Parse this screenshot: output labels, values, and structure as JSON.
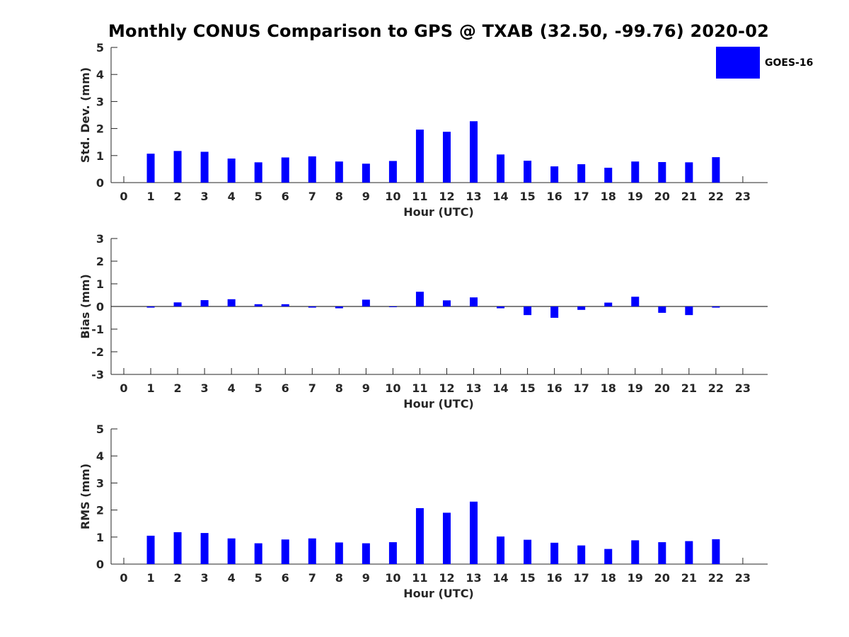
{
  "title": "Monthly CONUS Comparison to GPS @ TXAB (32.50, -99.76) 2020-02",
  "legend": {
    "label": "GOES-16",
    "color": "#0000ff"
  },
  "chart_data": [
    {
      "type": "bar",
      "name": "std-dev",
      "xlabel": "Hour (UTC)",
      "ylabel": "Std. Dev. (mm)",
      "ylim": [
        0,
        5
      ],
      "yticks": [
        0,
        1,
        2,
        3,
        4,
        5
      ],
      "categories": [
        "0",
        "1",
        "2",
        "3",
        "4",
        "5",
        "6",
        "7",
        "8",
        "9",
        "10",
        "11",
        "12",
        "13",
        "14",
        "15",
        "16",
        "17",
        "18",
        "19",
        "20",
        "21",
        "22",
        "23"
      ],
      "series": [
        {
          "name": "GOES-16",
          "values": [
            null,
            1.07,
            1.17,
            1.14,
            0.89,
            0.75,
            0.93,
            0.97,
            0.78,
            0.7,
            0.8,
            1.96,
            1.88,
            2.27,
            1.04,
            0.81,
            0.6,
            0.68,
            0.55,
            0.78,
            0.76,
            0.75,
            0.94,
            null
          ]
        }
      ]
    },
    {
      "type": "bar",
      "name": "bias",
      "xlabel": "Hour (UTC)",
      "ylabel": "Bias (mm)",
      "ylim": [
        -3,
        3
      ],
      "yticks": [
        -3,
        -2,
        -1,
        0,
        1,
        2,
        3
      ],
      "categories": [
        "0",
        "1",
        "2",
        "3",
        "4",
        "5",
        "6",
        "7",
        "8",
        "9",
        "10",
        "11",
        "12",
        "13",
        "14",
        "15",
        "16",
        "17",
        "18",
        "19",
        "20",
        "21",
        "22",
        "23"
      ],
      "series": [
        {
          "name": "GOES-16",
          "values": [
            null,
            -0.05,
            0.18,
            0.28,
            0.32,
            0.1,
            0.1,
            -0.05,
            -0.08,
            0.3,
            0.0,
            0.65,
            0.27,
            0.4,
            -0.08,
            -0.38,
            -0.5,
            -0.15,
            0.17,
            0.43,
            -0.28,
            -0.38,
            -0.05,
            null
          ]
        }
      ]
    },
    {
      "type": "bar",
      "name": "rms",
      "xlabel": "Hour (UTC)",
      "ylabel": "RMS (mm)",
      "ylim": [
        0,
        5
      ],
      "yticks": [
        0,
        1,
        2,
        3,
        4,
        5
      ],
      "categories": [
        "0",
        "1",
        "2",
        "3",
        "4",
        "5",
        "6",
        "7",
        "8",
        "9",
        "10",
        "11",
        "12",
        "13",
        "14",
        "15",
        "16",
        "17",
        "18",
        "19",
        "20",
        "21",
        "22",
        "23"
      ],
      "series": [
        {
          "name": "GOES-16",
          "values": [
            null,
            1.05,
            1.18,
            1.15,
            0.95,
            0.77,
            0.91,
            0.95,
            0.8,
            0.77,
            0.81,
            2.07,
            1.9,
            2.31,
            1.02,
            0.9,
            0.79,
            0.69,
            0.56,
            0.88,
            0.81,
            0.85,
            0.92,
            null
          ]
        }
      ]
    }
  ]
}
